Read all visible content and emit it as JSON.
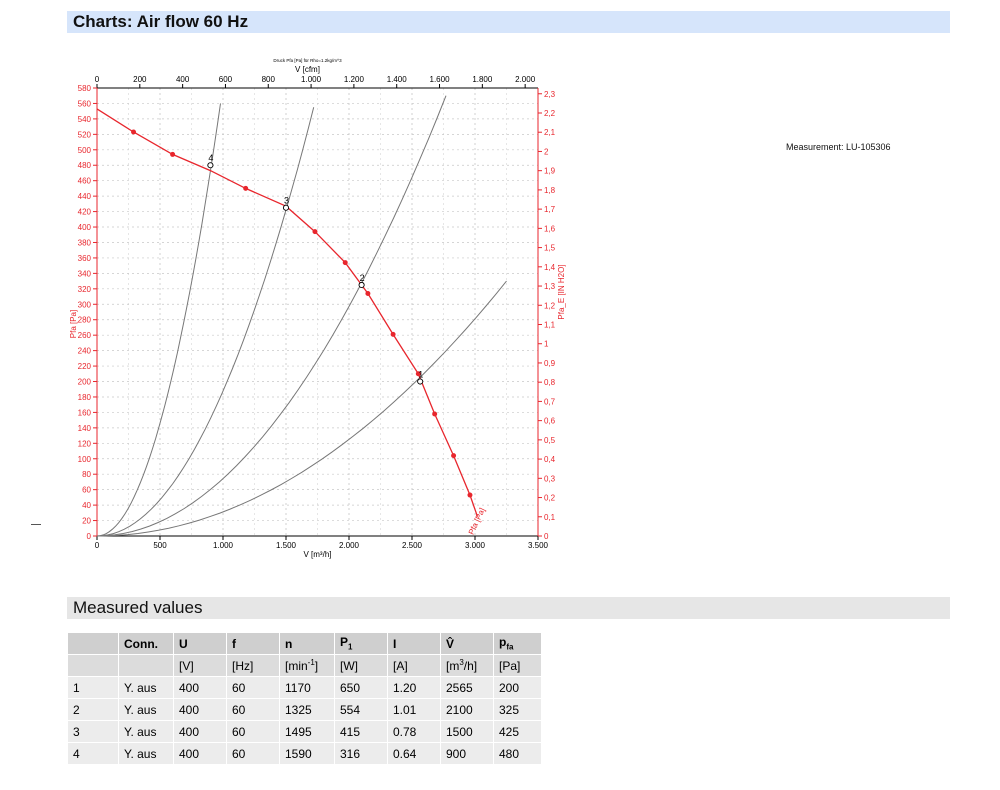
{
  "header": {
    "title": "Charts: Air flow 60 Hz"
  },
  "measurement_label": "Measurement: LU-105306",
  "section": {
    "measured_values": "Measured values"
  },
  "chart_data": {
    "type": "line",
    "title": "Druck Pfa [Pa] für Rho=1.2kg/m^3",
    "xlabel": "V [m³/h]",
    "x2label": "V [cfm]",
    "ylabel": "Pfa [Pa]",
    "y2label": "Pfa_E [IN H2O]",
    "xlim": [
      0,
      3500
    ],
    "x2lim": [
      0,
      2060
    ],
    "ylim": [
      0,
      580
    ],
    "y2lim": [
      0,
      2.33
    ],
    "grid": true,
    "x_ticks": [
      0,
      500,
      1000,
      1500,
      2000,
      2500,
      3000,
      3500
    ],
    "x_tick_labels": [
      "0",
      "500",
      "1.000",
      "1.500",
      "2.000",
      "2.500",
      "3.000",
      "3.500"
    ],
    "x2_ticks": [
      0,
      200,
      400,
      600,
      800,
      1000,
      1200,
      1400,
      1600,
      1800,
      2000
    ],
    "x2_tick_labels": [
      "0",
      "200",
      "400",
      "600",
      "800",
      "1.000",
      "1.200",
      "1.400",
      "1.600",
      "1.800",
      "2.000"
    ],
    "y_ticks": [
      0,
      20,
      40,
      60,
      80,
      100,
      120,
      140,
      160,
      180,
      200,
      220,
      240,
      260,
      280,
      300,
      320,
      340,
      360,
      380,
      400,
      420,
      440,
      460,
      480,
      500,
      520,
      540,
      560,
      580
    ],
    "y2_ticks": [
      0,
      0.1,
      0.2,
      0.3,
      0.4,
      0.5,
      0.6,
      0.7,
      0.8,
      0.9,
      1,
      1.1,
      1.2,
      1.3,
      1.4,
      1.5,
      1.6,
      1.7,
      1.8,
      1.9,
      2,
      2.1,
      2.2,
      2.3
    ],
    "y2_tick_labels": [
      "0",
      "0,1",
      "0,2",
      "0,3",
      "0,4",
      "0,5",
      "0,6",
      "0,7",
      "0,8",
      "0,9",
      "1",
      "1,1",
      "1,2",
      "1,3",
      "1,4",
      "1,5",
      "1,6",
      "1,7",
      "1,8",
      "1,9",
      "2",
      "2,1",
      "2,2",
      "2,3"
    ],
    "series": [
      {
        "name": "Pfa [Pa]",
        "color": "#e8262d",
        "x": [
          0,
          290,
          600,
          900,
          1180,
          1500,
          1730,
          1970,
          2150,
          2350,
          2550,
          2680,
          2830,
          2960,
          3020
        ],
        "y": [
          553,
          523,
          494,
          473,
          450,
          427,
          394,
          354,
          314,
          261,
          210,
          158,
          104,
          53,
          25
        ],
        "markers_x": [
          290,
          600,
          1180,
          1730,
          1970,
          2150,
          2350,
          2550,
          2680,
          2830,
          2960
        ],
        "markers_y": [
          523,
          494,
          450,
          394,
          354,
          314,
          261,
          210,
          158,
          104,
          53
        ]
      }
    ],
    "system_curves": [
      {
        "label": "1",
        "x_end": 3250,
        "y_end": 330,
        "point_x": 2565,
        "point_y": 200
      },
      {
        "label": "2",
        "x_end": 2770,
        "y_end": 570,
        "point_x": 2100,
        "point_y": 325
      },
      {
        "label": "3",
        "x_end": 1720,
        "y_end": 555,
        "point_x": 1500,
        "point_y": 425
      },
      {
        "label": "4",
        "x_end": 980,
        "y_end": 560,
        "point_x": 900,
        "point_y": 480
      }
    ],
    "system_curve_color": "#777777"
  },
  "table": {
    "headers": [
      "",
      "Conn.",
      "U",
      "f",
      "n",
      "P1",
      "I",
      "V̂",
      "pfa"
    ],
    "units": [
      "",
      "",
      "[V]",
      "[Hz]",
      "[min-1]",
      "[W]",
      "[A]",
      "[m3/h]",
      "[Pa]"
    ],
    "rows": [
      [
        "1",
        "Y. aus",
        "400",
        "60",
        "1170",
        "650",
        "1.20",
        "2565",
        "200"
      ],
      [
        "2",
        "Y. aus",
        "400",
        "60",
        "1325",
        "554",
        "1.01",
        "2100",
        "325"
      ],
      [
        "3",
        "Y. aus",
        "400",
        "60",
        "1495",
        "415",
        "0.78",
        "1500",
        "425"
      ],
      [
        "4",
        "Y. aus",
        "400",
        "60",
        "1590",
        "316",
        "0.64",
        "900",
        "480"
      ]
    ]
  }
}
